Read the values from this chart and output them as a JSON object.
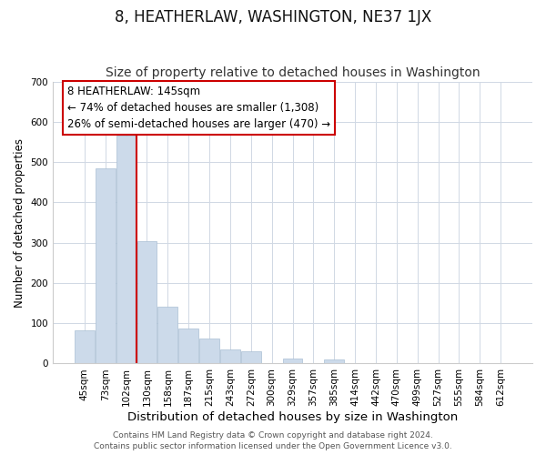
{
  "title": "8, HEATHERLAW, WASHINGTON, NE37 1JX",
  "subtitle": "Size of property relative to detached houses in Washington",
  "xlabel": "Distribution of detached houses by size in Washington",
  "ylabel": "Number of detached properties",
  "categories": [
    "45sqm",
    "73sqm",
    "102sqm",
    "130sqm",
    "158sqm",
    "187sqm",
    "215sqm",
    "243sqm",
    "272sqm",
    "300sqm",
    "329sqm",
    "357sqm",
    "385sqm",
    "414sqm",
    "442sqm",
    "470sqm",
    "499sqm",
    "527sqm",
    "555sqm",
    "584sqm",
    "612sqm"
  ],
  "values": [
    82,
    484,
    566,
    303,
    140,
    86,
    63,
    36,
    30,
    0,
    13,
    0,
    11,
    0,
    0,
    0,
    0,
    0,
    0,
    0,
    0
  ],
  "bar_color": "#ccdaea",
  "bar_edge_color": "#aabfd4",
  "marker_line_color": "#cc0000",
  "annotation_title": "8 HEATHERLAW: 145sqm",
  "annotation_line1": "← 74% of detached houses are smaller (1,308)",
  "annotation_line2": "26% of semi-detached houses are larger (470) →",
  "footer1": "Contains HM Land Registry data © Crown copyright and database right 2024.",
  "footer2": "Contains public sector information licensed under the Open Government Licence v3.0.",
  "ylim": [
    0,
    700
  ],
  "yticks": [
    0,
    100,
    200,
    300,
    400,
    500,
    600,
    700
  ],
  "title_fontsize": 12,
  "subtitle_fontsize": 10,
  "xlabel_fontsize": 9.5,
  "ylabel_fontsize": 8.5,
  "tick_fontsize": 7.5,
  "annotation_fontsize": 8.5,
  "footer_fontsize": 6.5
}
